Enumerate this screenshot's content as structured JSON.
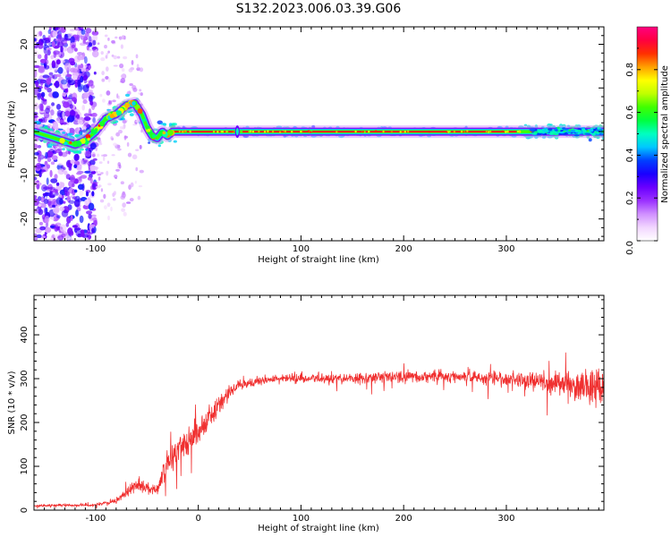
{
  "title": "S132.2023.006.03.39.G06",
  "chart_data": [
    {
      "id": "spectrogram",
      "type": "heatmap",
      "xlabel": "Height of straight line (km)",
      "ylabel": "Frequency (Hz)",
      "xlim": [
        -160,
        395
      ],
      "ylim": [
        -25,
        24
      ],
      "xticks": [
        -100,
        0,
        100,
        200,
        300
      ],
      "yticks": [
        -20,
        -10,
        0,
        10,
        20
      ],
      "ridge": {
        "description_points_x": [
          -160,
          -120,
          -110,
          -100,
          -90,
          -80,
          -70,
          -62,
          -55,
          -50,
          -45,
          -40,
          -35,
          -30,
          -25,
          0,
          100,
          200,
          300,
          395
        ],
        "description_points_y": [
          0,
          -3,
          -2,
          0,
          3,
          4,
          6,
          6.5,
          4,
          1,
          -1,
          -1.5,
          0,
          -1,
          0,
          0,
          0,
          0,
          0,
          0
        ]
      },
      "colorbar": {
        "label": "Normalized spectral amplitude",
        "range": [
          0,
          1
        ],
        "ticks": [
          0.0,
          0.2,
          0.4,
          0.6,
          0.8
        ],
        "tick_labels": [
          "0.0",
          "0.2",
          "0.4",
          "0.6",
          "0.8"
        ],
        "colormap": [
          "#ffffff",
          "#f2d6ff",
          "#d090ff",
          "#9a30ff",
          "#6a00ff",
          "#1a00ff",
          "#0040ff",
          "#00c8ff",
          "#00ffc0",
          "#00ff40",
          "#40ff00",
          "#c0ff00",
          "#ffff00",
          "#ffa000",
          "#ff3000",
          "#ff0040",
          "#ff0080"
        ]
      }
    },
    {
      "id": "snr",
      "type": "line",
      "xlabel": "Height of straight line (km)",
      "ylabel": "SNR (10 * v/v)",
      "xlim": [
        -160,
        395
      ],
      "ylim": [
        0,
        490
      ],
      "xticks": [
        -100,
        0,
        100,
        200,
        300
      ],
      "yticks": [
        0,
        100,
        200,
        300,
        400
      ],
      "color": "#f03030",
      "envelope": {
        "x": [
          -160,
          -100,
          -80,
          -70,
          -60,
          -50,
          -40,
          -30,
          -20,
          -10,
          0,
          10,
          20,
          30,
          40,
          60,
          80,
          100,
          150,
          200,
          250,
          300,
          350,
          380,
          395
        ],
        "y": [
          10,
          12,
          20,
          40,
          60,
          50,
          50,
          100,
          140,
          160,
          180,
          210,
          240,
          270,
          285,
          295,
          300,
          300,
          300,
          305,
          305,
          300,
          290,
          280,
          285
        ],
        "noise": [
          4,
          5,
          8,
          15,
          20,
          18,
          20,
          40,
          50,
          50,
          50,
          40,
          30,
          20,
          15,
          12,
          15,
          15,
          18,
          20,
          20,
          25,
          35,
          60,
          70
        ]
      }
    }
  ]
}
